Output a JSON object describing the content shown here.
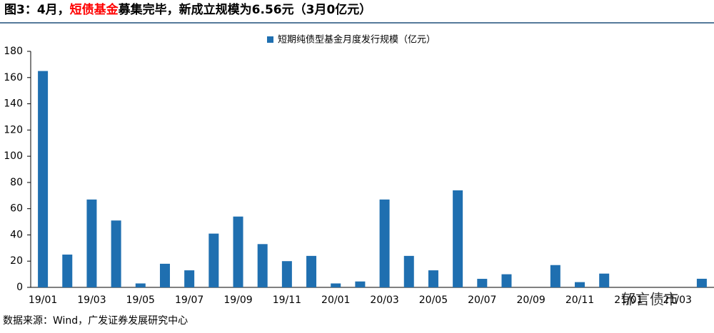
{
  "chart_data": {
    "type": "bar",
    "title": [
      "图3：4月，",
      "短债基金",
      "募集完毕，新成立规模为6.56元（3月0亿元）"
    ],
    "title_colors": [
      "#000000",
      "#ff0000",
      "#000000"
    ],
    "legend": "短期纯债型基金月度发行规模（亿元）",
    "source": "数据来源：Wind，广发证券发展研究中心",
    "watermark": "郁言债市",
    "color": "#1f6fb0",
    "categories": [
      "19/01",
      null,
      "19/03",
      null,
      "19/05",
      null,
      "19/07",
      null,
      "19/09",
      null,
      "19/11",
      null,
      "20/01",
      null,
      "20/03",
      null,
      "20/05",
      null,
      "20/07",
      null,
      "20/09",
      null,
      "20/11",
      null,
      "21/01",
      null,
      "21/03",
      null
    ],
    "values": [
      165,
      25,
      67,
      51,
      3,
      18,
      13,
      41,
      54,
      33,
      20,
      24,
      3,
      4.5,
      67,
      24,
      13,
      74,
      6.5,
      10,
      0,
      17,
      4,
      10.5,
      0,
      0,
      0,
      6.56
    ],
    "ylim": [
      0,
      180
    ],
    "yticks": [
      0,
      20,
      40,
      60,
      80,
      100,
      120,
      140,
      160,
      180
    ]
  }
}
